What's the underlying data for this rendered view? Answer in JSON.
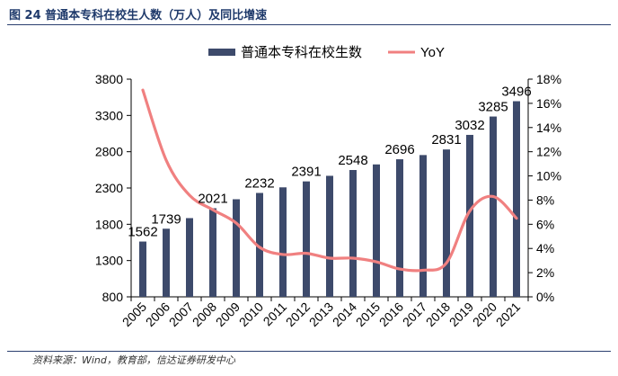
{
  "figure": {
    "title": "图 24  普通本专科在校生人数（万人）及同比增速",
    "source": "资料来源：Wind，教育部，信达证券研发中心"
  },
  "colors": {
    "bar": "#3d4a6b",
    "line": "#f08080",
    "title": "#1f3a6b",
    "axis": "#000000"
  },
  "chart_data": {
    "type": "bar",
    "categories": [
      "2005",
      "2006",
      "2007",
      "2008",
      "2009",
      "2010",
      "2011",
      "2012",
      "2013",
      "2014",
      "2015",
      "2016",
      "2017",
      "2018",
      "2019",
      "2020",
      "2021"
    ],
    "series": [
      {
        "name": "普通本专科在校生数",
        "type": "bar",
        "axis": "left",
        "values": [
          1562,
          1739,
          1885,
          2021,
          2145,
          2232,
          2309,
          2391,
          2468,
          2548,
          2625,
          2696,
          2754,
          2831,
          3032,
          3285,
          3496
        ]
      },
      {
        "name": "YoY",
        "type": "line",
        "axis": "right",
        "values": [
          17.1,
          11.3,
          8.4,
          7.2,
          6.1,
          4.1,
          3.5,
          3.6,
          3.2,
          3.2,
          2.9,
          2.3,
          2.2,
          2.8,
          7.1,
          8.3,
          6.5
        ]
      }
    ],
    "data_labels": [
      {
        "index": 0,
        "text": "1562"
      },
      {
        "index": 1,
        "text": "1739"
      },
      {
        "index": 3,
        "text": "2021"
      },
      {
        "index": 5,
        "text": "2232"
      },
      {
        "index": 7,
        "text": "2391"
      },
      {
        "index": 9,
        "text": "2548"
      },
      {
        "index": 11,
        "text": "2696"
      },
      {
        "index": 13,
        "text": "2831"
      },
      {
        "index": 14,
        "text": "3032"
      },
      {
        "index": 15,
        "text": "3285"
      },
      {
        "index": 16,
        "text": "3496"
      }
    ],
    "y_left": {
      "ylim": [
        800,
        3800
      ],
      "ticks": [
        800,
        1300,
        1800,
        2300,
        2800,
        3300,
        3800
      ],
      "tick_labels": [
        "800",
        "1300",
        "1800",
        "2300",
        "2800",
        "3300",
        "3800"
      ]
    },
    "y_right": {
      "ylim": [
        0,
        18
      ],
      "ticks": [
        0,
        2,
        4,
        6,
        8,
        10,
        12,
        14,
        16,
        18
      ],
      "tick_labels": [
        "0%",
        "2%",
        "4%",
        "6%",
        "8%",
        "10%",
        "12%",
        "14%",
        "16%",
        "18%"
      ]
    },
    "grid": false,
    "legend": "top-center"
  }
}
